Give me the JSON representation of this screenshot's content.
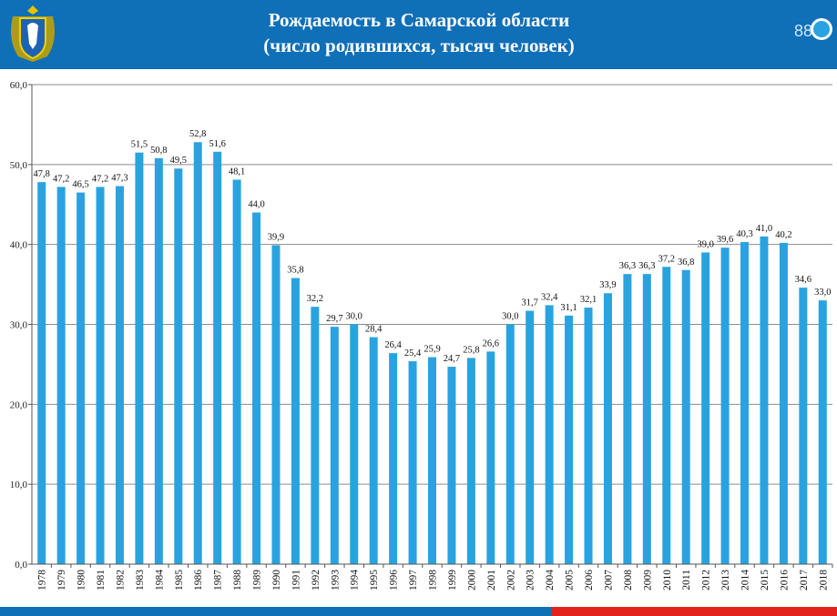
{
  "header": {
    "title_line1": "Рождаемость в Самарской области",
    "title_line2": "(число родившихся, тысяч человек)",
    "emblem_icon": "coat-of-arms-icon",
    "logo_icon": "statistics-logo-icon",
    "logo_text": "88"
  },
  "colors": {
    "header_bg": "#0f6fb7",
    "bar": "#29a3e0",
    "footer_blue": "#0f6fb7",
    "footer_red": "#e3231b"
  },
  "chart_data": {
    "type": "bar",
    "title": "Рождаемость в Самарской области (число родившихся, тысяч человек)",
    "xlabel": "",
    "ylabel": "",
    "ylim": [
      0,
      60
    ],
    "yticks": [
      "0,0",
      "10,0",
      "20,0",
      "30,0",
      "40,0",
      "50,0",
      "60,0"
    ],
    "grid": true,
    "categories": [
      "1978",
      "1979",
      "1980",
      "1981",
      "1982",
      "1983",
      "1984",
      "1985",
      "1986",
      "1987",
      "1988",
      "1989",
      "1990",
      "1991",
      "1992",
      "1993",
      "1994",
      "1995",
      "1996",
      "1997",
      "1998",
      "1999",
      "2000",
      "2001",
      "2002",
      "2003",
      "2004",
      "2005",
      "2006",
      "2007",
      "2008",
      "2009",
      "2010",
      "2011",
      "2012",
      "2013",
      "2014",
      "2015",
      "2016",
      "2017",
      "2018"
    ],
    "values": [
      47.8,
      47.2,
      46.5,
      47.2,
      47.3,
      51.5,
      50.8,
      49.5,
      52.8,
      51.6,
      48.1,
      44.0,
      39.9,
      35.8,
      32.2,
      29.7,
      30.0,
      28.4,
      26.4,
      25.4,
      25.9,
      24.7,
      25.8,
      26.6,
      30.0,
      31.7,
      32.4,
      31.1,
      32.1,
      33.9,
      36.3,
      36.3,
      37.2,
      36.8,
      39.0,
      39.6,
      40.3,
      41.0,
      40.2,
      34.6,
      33.0
    ],
    "labels": [
      "47,8",
      "47,2",
      "46,5",
      "47,2",
      "47,3",
      "51,5",
      "50,8",
      "49,5",
      "52,8",
      "51,6",
      "48,1",
      "44,0",
      "39,9",
      "35,8",
      "32,2",
      "29,7",
      "30,0",
      "28,4",
      "26,4",
      "25,4",
      "25,9",
      "24,7",
      "25,8",
      "26,6",
      "30,0",
      "31,7",
      "32,4",
      "31,1",
      "32,1",
      "33,9",
      "36,3",
      "36,3",
      "37,2",
      "36,8",
      "39,0",
      "39,6",
      "40,3",
      "41,0",
      "40,2",
      "34,6",
      "33,0"
    ]
  }
}
